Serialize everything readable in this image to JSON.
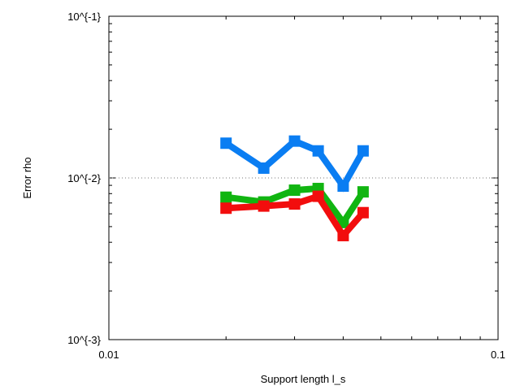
{
  "chart_data": {
    "type": "line",
    "xlabel": "Support length l_s",
    "ylabel": "Error rho",
    "x_scale": "log",
    "y_scale": "log",
    "xlim": [
      0.01,
      0.1
    ],
    "ylim": [
      0.001,
      0.1
    ],
    "x_tick_labels": [
      {
        "value": 0.01,
        "label": "0.01"
      },
      {
        "value": 0.1,
        "label": "0.1"
      }
    ],
    "y_tick_labels": [
      {
        "value": 0.001,
        "label": "10^{-3}"
      },
      {
        "value": 0.01,
        "label": "10^{-2}"
      },
      {
        "value": 0.1,
        "label": "10^{-1}"
      }
    ],
    "reference_line": {
      "y": 0.01,
      "style": "dotted"
    },
    "grid": false,
    "legend": "none",
    "series": [
      {
        "color": "#0a7df2",
        "x": [
          0.02,
          0.025,
          0.03,
          0.0345,
          0.04,
          0.045
        ],
        "y": [
          0.0164,
          0.0115,
          0.0169,
          0.0147,
          0.0089,
          0.0147
        ]
      },
      {
        "color": "#11b511",
        "x": [
          0.02,
          0.025,
          0.03,
          0.0345,
          0.04,
          0.045
        ],
        "y": [
          0.0076,
          0.0071,
          0.0084,
          0.0086,
          0.0053,
          0.0082
        ]
      },
      {
        "color": "#f20d0d",
        "x": [
          0.02,
          0.025,
          0.03,
          0.0345,
          0.04,
          0.045
        ],
        "y": [
          0.0065,
          0.0067,
          0.0069,
          0.0077,
          0.0044,
          0.0061
        ]
      }
    ]
  }
}
